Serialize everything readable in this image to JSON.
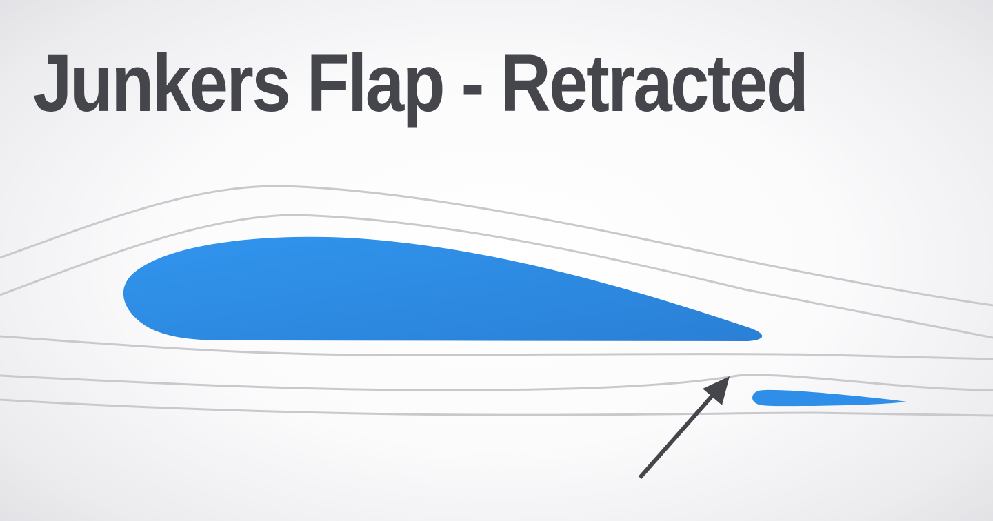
{
  "title": "Junkers Flap - Retracted",
  "colors": {
    "airfoil": "#2f8fe8",
    "airfoil_dark": "#2a7fd4",
    "streamline": "#c9c9cd",
    "arrow": "#45454c",
    "title_text": "#45454c"
  },
  "elements": {
    "main_wing": "main-wing-airfoil",
    "flap": "junkers-flap",
    "arrow": "arrow-pointer",
    "streamlines": "airflow-streamlines"
  }
}
